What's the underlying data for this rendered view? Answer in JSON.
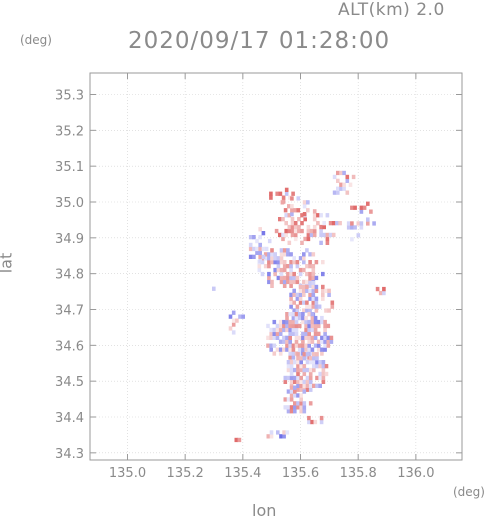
{
  "header": {
    "altitude_label": "ALT(km)",
    "altitude_value": "2.0",
    "timestamp": "2020/09/17 01:28:00"
  },
  "chart_data": {
    "type": "heatmap",
    "title": "2020/09/17 01:28:00",
    "xlabel": "lon",
    "ylabel": "lat",
    "x_unit": "(deg)",
    "y_unit": "(deg)",
    "xlim": [
      134.87,
      136.16
    ],
    "ylim": [
      34.28,
      35.36
    ],
    "x_ticks": [
      "135.0",
      "135.2",
      "135.4",
      "135.6",
      "135.8",
      "136.0"
    ],
    "y_ticks": [
      "34.3",
      "34.4",
      "34.5",
      "34.6",
      "34.7",
      "34.8",
      "34.9",
      "35.0",
      "35.1",
      "35.2",
      "35.3"
    ],
    "grid": true,
    "colors": {
      "positive": "#e06a6a",
      "negative": "#6a6ae6",
      "near_zero": "#f4e4ea",
      "axis": "#9a9a9a",
      "grid": "#d0d0d0"
    },
    "regions": [
      {
        "lon": 135.62,
        "lat": 34.92,
        "rlon": 0.12,
        "rlat": 0.05,
        "density": 0.55,
        "bias": 0.45
      },
      {
        "lon": 135.53,
        "lat": 35.01,
        "rlon": 0.05,
        "rlat": 0.025,
        "density": 0.45,
        "bias": 0.35
      },
      {
        "lon": 135.8,
        "lat": 34.94,
        "rlon": 0.05,
        "rlat": 0.06,
        "density": 0.45,
        "bias": 0.3
      },
      {
        "lon": 135.74,
        "lat": 35.05,
        "rlon": 0.05,
        "rlat": 0.04,
        "density": 0.35,
        "bias": 0.3
      },
      {
        "lon": 135.56,
        "lat": 34.81,
        "rlon": 0.12,
        "rlat": 0.06,
        "density": 0.7,
        "bias": 0.0
      },
      {
        "lon": 135.45,
        "lat": 34.87,
        "rlon": 0.04,
        "rlat": 0.05,
        "density": 0.45,
        "bias": -0.2
      },
      {
        "lon": 135.63,
        "lat": 34.72,
        "rlon": 0.08,
        "rlat": 0.05,
        "density": 0.75,
        "bias": 0.1
      },
      {
        "lon": 135.59,
        "lat": 34.62,
        "rlon": 0.12,
        "rlat": 0.07,
        "density": 0.88,
        "bias": 0.0
      },
      {
        "lon": 135.61,
        "lat": 34.52,
        "rlon": 0.08,
        "rlat": 0.06,
        "density": 0.85,
        "bias": 0.05
      },
      {
        "lon": 135.58,
        "lat": 34.44,
        "rlon": 0.05,
        "rlat": 0.04,
        "density": 0.6,
        "bias": 0.1
      },
      {
        "lon": 135.64,
        "lat": 34.39,
        "rlon": 0.05,
        "rlat": 0.02,
        "density": 0.4,
        "bias": 0.2
      },
      {
        "lon": 135.51,
        "lat": 34.345,
        "rlon": 0.05,
        "rlat": 0.015,
        "density": 0.35,
        "bias": -0.3
      },
      {
        "lon": 135.38,
        "lat": 34.33,
        "rlon": 0.02,
        "rlat": 0.01,
        "density": 0.85,
        "bias": 0.8
      },
      {
        "lon": 135.87,
        "lat": 34.745,
        "rlon": 0.02,
        "rlat": 0.015,
        "density": 0.85,
        "bias": 0.5
      },
      {
        "lon": 135.29,
        "lat": 34.75,
        "rlon": 0.008,
        "rlat": 0.008,
        "density": 1.0,
        "bias": 0.6
      },
      {
        "lon": 135.37,
        "lat": 34.67,
        "rlon": 0.03,
        "rlat": 0.05,
        "density": 0.4,
        "bias": 0.0
      },
      {
        "lon": 135.58,
        "lat": 34.98,
        "rlon": 0.06,
        "rlat": 0.03,
        "density": 0.35,
        "bias": 0.2
      }
    ]
  }
}
